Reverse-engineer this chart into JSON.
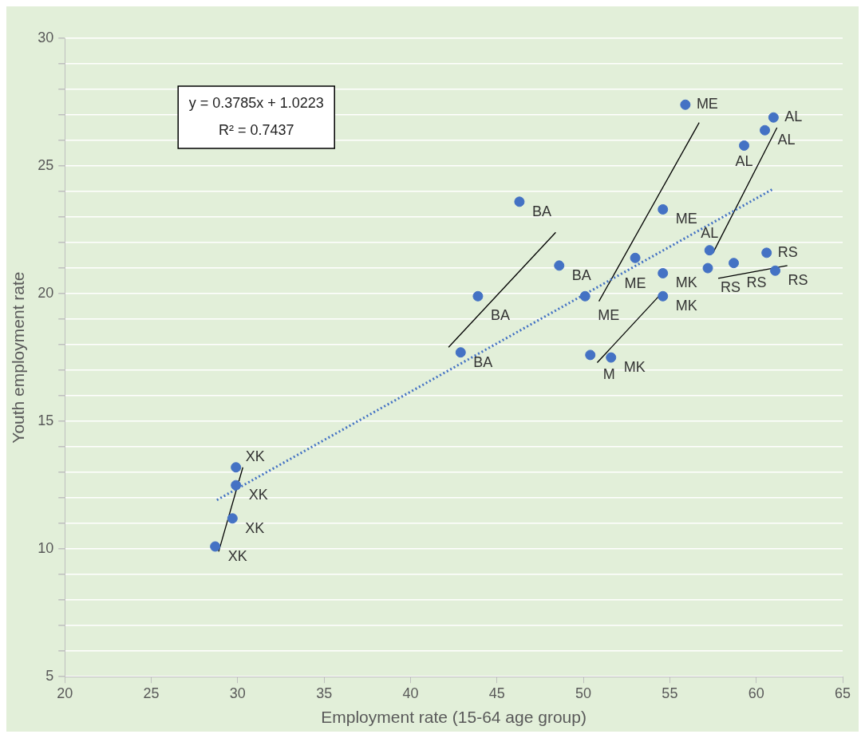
{
  "chart_data": {
    "type": "scatter",
    "xlabel": "Employment rate (15-64 age group)",
    "ylabel": "Youth employment rate",
    "xlim": [
      20,
      65
    ],
    "xticks": [
      20,
      25,
      30,
      35,
      40,
      45,
      50,
      55,
      60,
      65
    ],
    "ylim": [
      5,
      30
    ],
    "yticks": [
      5,
      {
        "value": 6,
        "label": null
      },
      {
        "value": 7,
        "label": null
      },
      {
        "value": 8,
        "label": null
      },
      {
        "value": 9,
        "label": null
      },
      10,
      {
        "value": 11,
        "label": null
      },
      {
        "value": 12,
        "label": null
      },
      {
        "value": 13,
        "label": null
      },
      {
        "value": 14,
        "label": null
      },
      15,
      {
        "value": 16,
        "label": null
      },
      {
        "value": 17,
        "label": null
      },
      {
        "value": 18,
        "label": null
      },
      {
        "value": 19,
        "label": null
      },
      20,
      {
        "value": 21,
        "label": null
      },
      {
        "value": 22,
        "label": null
      },
      {
        "value": 23,
        "label": null
      },
      {
        "value": 24,
        "label": null
      },
      25,
      {
        "value": 26,
        "label": null
      },
      {
        "value": 27,
        "label": null
      },
      {
        "value": 28,
        "label": null
      },
      {
        "value": 29,
        "label": null
      },
      30
    ],
    "grid": "y",
    "legend": false,
    "annotations": [
      "y = 0.3785x + 1.0223",
      "R² = 0.7437"
    ],
    "series": [
      {
        "type": "scatter",
        "marker": "circle",
        "color": "#4472c4",
        "x": [
          28.7,
          29.7,
          29.9,
          29.9,
          42.9,
          43.9,
          46.3,
          48.6,
          50.1,
          53.0,
          54.6,
          55.9,
          50.4,
          51.6,
          54.6,
          54.6,
          57.3,
          59.3,
          60.5,
          61.0,
          57.2,
          58.7,
          60.6,
          61.1
        ],
        "values": [
          10.1,
          11.2,
          12.5,
          13.2,
          17.7,
          19.9,
          23.6,
          21.1,
          19.9,
          21.4,
          23.3,
          27.4,
          17.6,
          17.5,
          19.9,
          20.8,
          21.7,
          25.8,
          26.4,
          26.9,
          21.0,
          21.2,
          21.6,
          20.9
        ],
        "value_labels": [
          "XK",
          "XK",
          "XK",
          "XK",
          "BA",
          "BA",
          "BA",
          "BA",
          "ME",
          "ME",
          "ME",
          "ME",
          "M",
          "MK",
          "MK",
          "MK",
          "AL",
          "AL",
          "AL",
          "AL",
          "RS",
          "RS",
          "RS",
          "RS"
        ]
      },
      {
        "type": "line",
        "marker": "none",
        "line_style": "dotted",
        "color": "#4472c4",
        "x": [
          28.8,
          61
        ],
        "values": [
          11.92,
          24.11
        ]
      },
      {
        "type": "line",
        "marker": "none",
        "line_style": "solid",
        "color": "#000000",
        "x": [
          28.9,
          30.3
        ],
        "values": [
          9.9,
          13.2
        ]
      },
      {
        "type": "line",
        "marker": "none",
        "line_style": "solid",
        "color": "#000000",
        "x": [
          42.2,
          48.4
        ],
        "values": [
          17.9,
          22.4
        ]
      },
      {
        "type": "line",
        "marker": "none",
        "line_style": "solid",
        "color": "#000000",
        "x": [
          50.9,
          56.7
        ],
        "values": [
          19.7,
          26.7
        ]
      },
      {
        "type": "line",
        "marker": "none",
        "line_style": "solid",
        "color": "#000000",
        "x": [
          50.8,
          54.5
        ],
        "values": [
          17.3,
          20.0
        ]
      },
      {
        "type": "line",
        "marker": "none",
        "line_style": "solid",
        "color": "#000000",
        "x": [
          57.5,
          61.2
        ],
        "values": [
          21.6,
          26.5
        ]
      },
      {
        "type": "line",
        "marker": "none",
        "line_style": "solid",
        "color": "#000000",
        "x": [
          57.8,
          61.8
        ],
        "values": [
          20.6,
          21.1
        ]
      }
    ]
  }
}
